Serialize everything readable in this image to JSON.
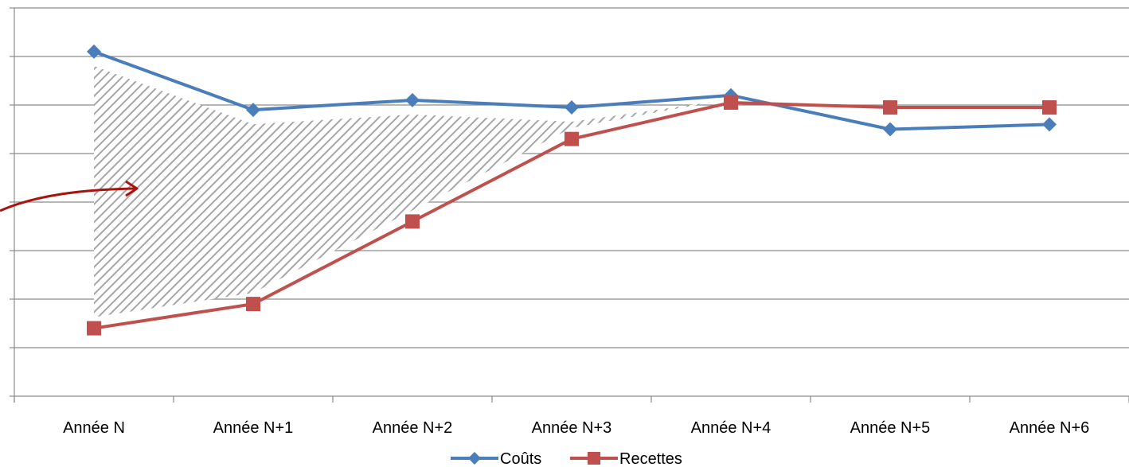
{
  "chart_data": {
    "type": "line",
    "categories": [
      "Année N",
      "Année N+1",
      "Année N+2",
      "Année N+3",
      "Année N+4",
      "Année N+5",
      "Année N+6"
    ],
    "series": [
      {
        "name": "Coûts",
        "values": [
          7.1,
          5.9,
          6.1,
          5.95,
          6.2,
          5.5,
          5.6
        ],
        "color": "#4a7ebb",
        "marker": "diamond"
      },
      {
        "name": "Recettes",
        "values": [
          1.4,
          1.9,
          3.6,
          5.3,
          6.05,
          5.95,
          5.95
        ],
        "color": "#c0504d",
        "marker": "square"
      }
    ],
    "ylim": [
      0,
      8
    ],
    "y_gridlines": 8,
    "y_tick_labels_shown": false,
    "grid": true,
    "legend": "bottom",
    "annotation": {
      "type": "hatched-area-between-series",
      "arrow_color": "#a8150f",
      "hatch_color": "#a6a6a6"
    }
  }
}
